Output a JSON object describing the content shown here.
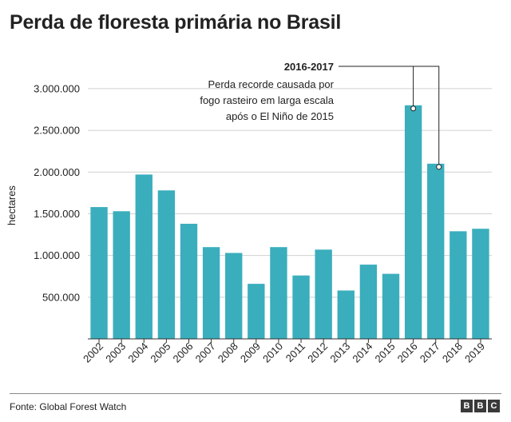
{
  "title": "Perda de floresta primária no Brasil",
  "source": "Fonte: Global Forest Watch",
  "logo": [
    "B",
    "B",
    "C"
  ],
  "colors": {
    "bar": "#3aaebc",
    "grid": "#d0d0d0",
    "axis": "#333333",
    "annotation": "#222222"
  },
  "chart_data": {
    "type": "bar",
    "categories": [
      "2002",
      "2003",
      "2004",
      "2005",
      "2006",
      "2007",
      "2008",
      "2009",
      "2010",
      "2011",
      "2012",
      "2013",
      "2014",
      "2015",
      "2016",
      "2017",
      "2018",
      "2019"
    ],
    "values": [
      1580000,
      1530000,
      1970000,
      1780000,
      1380000,
      1100000,
      1030000,
      660000,
      1100000,
      760000,
      1070000,
      580000,
      890000,
      780000,
      2800000,
      2100000,
      1290000,
      1320000
    ],
    "ylabel": "hectares",
    "ylim": [
      0,
      3200000
    ],
    "yticks": [
      500000,
      1000000,
      1500000,
      2000000,
      2500000,
      3000000
    ],
    "ytick_labels": [
      "500.000",
      "1.000.000",
      "1.500.000",
      "2.000.000",
      "2.500.000",
      "3.000.000"
    ],
    "grid": true,
    "annotation": {
      "title": "2016-2017",
      "lines": [
        "Perda recorde causada por",
        "fogo rasteiro em larga escala",
        "após o El Niño de 2015"
      ],
      "targets": [
        "2016",
        "2017"
      ]
    }
  }
}
